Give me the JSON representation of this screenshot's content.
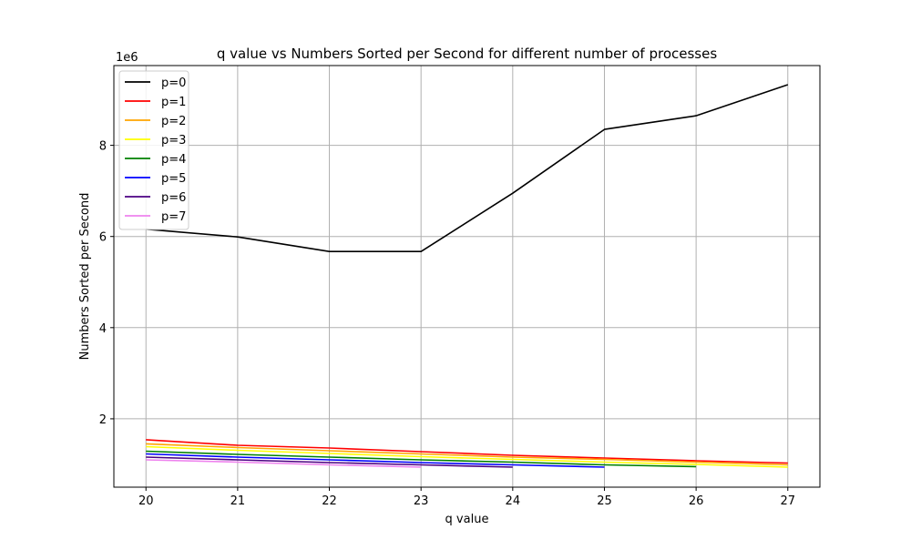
{
  "chart_data": {
    "type": "line",
    "title": "q value vs Numbers Sorted per Second for different number of processes",
    "xlabel": "q value",
    "ylabel": "Numbers Sorted per Second",
    "y_offset_label": "1e6",
    "y_scale": 1000000,
    "xlim": [
      19.65,
      27.35
    ],
    "ylim": [
      500000,
      9750000
    ],
    "x_ticks": [
      20,
      21,
      22,
      23,
      24,
      25,
      26,
      27
    ],
    "y_ticks": [
      2000000,
      4000000,
      6000000,
      8000000
    ],
    "grid": true,
    "legend_position": "upper-left",
    "series": [
      {
        "name": "p=0",
        "color": "#000000",
        "x": [
          20,
          21,
          22,
          23,
          24,
          25,
          26,
          27
        ],
        "values": [
          6160000,
          5990000,
          5670000,
          5670000,
          6950000,
          8350000,
          8650000,
          9330000
        ]
      },
      {
        "name": "p=1",
        "color": "#ff0000",
        "x": [
          20,
          21,
          22,
          23,
          24,
          25,
          26,
          27
        ],
        "values": [
          1540000,
          1420000,
          1360000,
          1280000,
          1200000,
          1140000,
          1080000,
          1030000
        ]
      },
      {
        "name": "p=2",
        "color": "#ffa500",
        "x": [
          20,
          21,
          22,
          23,
          24,
          25,
          26,
          27
        ],
        "values": [
          1450000,
          1370000,
          1300000,
          1230000,
          1160000,
          1110000,
          1050000,
          990000
        ]
      },
      {
        "name": "p=3",
        "color": "#ffff00",
        "x": [
          20,
          21,
          22,
          23,
          24,
          25,
          26,
          27
        ],
        "values": [
          1390000,
          1310000,
          1240000,
          1170000,
          1110000,
          1050000,
          1000000,
          940000
        ]
      },
      {
        "name": "p=4",
        "color": "#008000",
        "x": [
          20,
          21,
          22,
          23,
          24,
          25,
          26
        ],
        "values": [
          1290000,
          1220000,
          1160000,
          1100000,
          1050000,
          990000,
          950000
        ]
      },
      {
        "name": "p=5",
        "color": "#0000ff",
        "x": [
          20,
          21,
          22,
          23,
          24,
          25
        ],
        "values": [
          1230000,
          1160000,
          1100000,
          1040000,
          990000,
          940000
        ]
      },
      {
        "name": "p=6",
        "color": "#4b0082",
        "x": [
          20,
          21,
          22,
          23,
          24
        ],
        "values": [
          1160000,
          1100000,
          1040000,
          990000,
          940000
        ]
      },
      {
        "name": "p=7",
        "color": "#ee82ee",
        "x": [
          20,
          21,
          22,
          23
        ],
        "values": [
          1100000,
          1050000,
          990000,
          940000
        ]
      }
    ]
  }
}
